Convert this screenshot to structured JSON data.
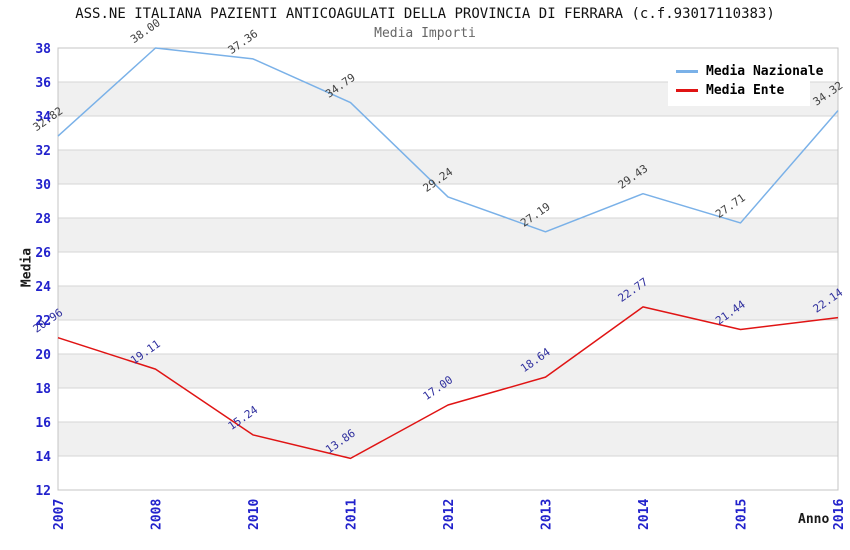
{
  "title": "ASS.NE ITALIANA PAZIENTI ANTICOAGULATI DELLA PROVINCIA DI FERRARA (c.f.93017110383)",
  "subtitle": "Media Importi",
  "chart_data": {
    "type": "line",
    "x": [
      "2007",
      "2008",
      "2010",
      "2011",
      "2012",
      "2013",
      "2014",
      "2015",
      "2016"
    ],
    "series": [
      {
        "name": "Media Nazionale",
        "color": "#7AB1E8",
        "label_color": "#404040",
        "values": [
          32.82,
          38.0,
          37.36,
          34.79,
          29.24,
          27.19,
          29.43,
          27.71,
          34.32
        ]
      },
      {
        "name": "Media Ente",
        "color": "#E01414",
        "label_color": "#2F2F9E",
        "values": [
          20.96,
          19.11,
          15.24,
          13.86,
          17.0,
          18.64,
          22.77,
          21.44,
          22.14
        ]
      }
    ],
    "xlabel": "Anno",
    "ylabel": "Media",
    "ylim": [
      12,
      38
    ],
    "ytick_step": 2,
    "grid": true,
    "legend_position": "top-right",
    "colors": {
      "tick_label": "#2222CC",
      "band_alt": "#F0F0F0",
      "band_main": "#FFFFFF",
      "gridline": "#D6D6D6",
      "plot_border": "#C4C4C4"
    }
  }
}
